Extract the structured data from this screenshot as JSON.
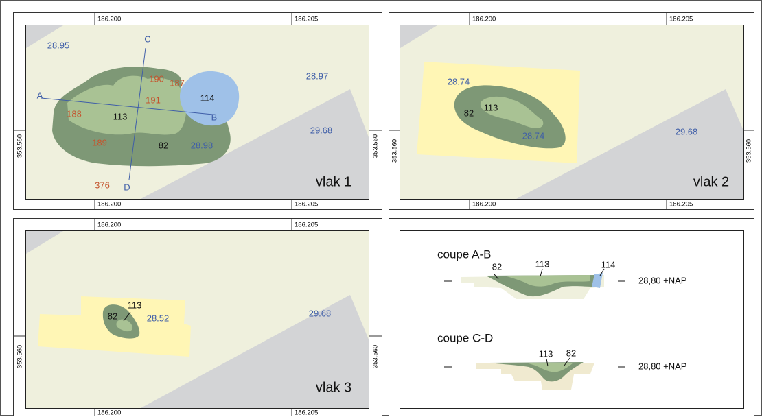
{
  "panels": [
    {
      "title": "vlak 1",
      "grid": {
        "x": [
          "186.200",
          "186.205"
        ],
        "y": "353.560"
      },
      "labels": [
        "28.95",
        "28.97",
        "29.68",
        "28.98",
        "190",
        "187",
        "191",
        "188",
        "189",
        "376",
        "114",
        "113",
        "82"
      ],
      "section_lines": [
        "A",
        "B",
        "C",
        "D"
      ]
    },
    {
      "title": "vlak 2",
      "grid": {
        "x": [
          "186.200",
          "186.205"
        ],
        "y": "353.560"
      },
      "labels": [
        "28.74",
        "82",
        "113",
        "28.74",
        "29.68"
      ]
    },
    {
      "title": "vlak 3",
      "grid": {
        "x": [
          "186.200",
          "186.205"
        ],
        "y": "353.560"
      },
      "labels": [
        "113",
        "82",
        "28.52",
        "29.68"
      ]
    }
  ],
  "sections": [
    {
      "title": "coupe A-B",
      "labels": [
        "82",
        "113",
        "114"
      ],
      "level": "28,80 +NAP"
    },
    {
      "title": "coupe C-D",
      "labels": [
        "113",
        "82"
      ],
      "level": "28,80 +NAP"
    }
  ]
}
